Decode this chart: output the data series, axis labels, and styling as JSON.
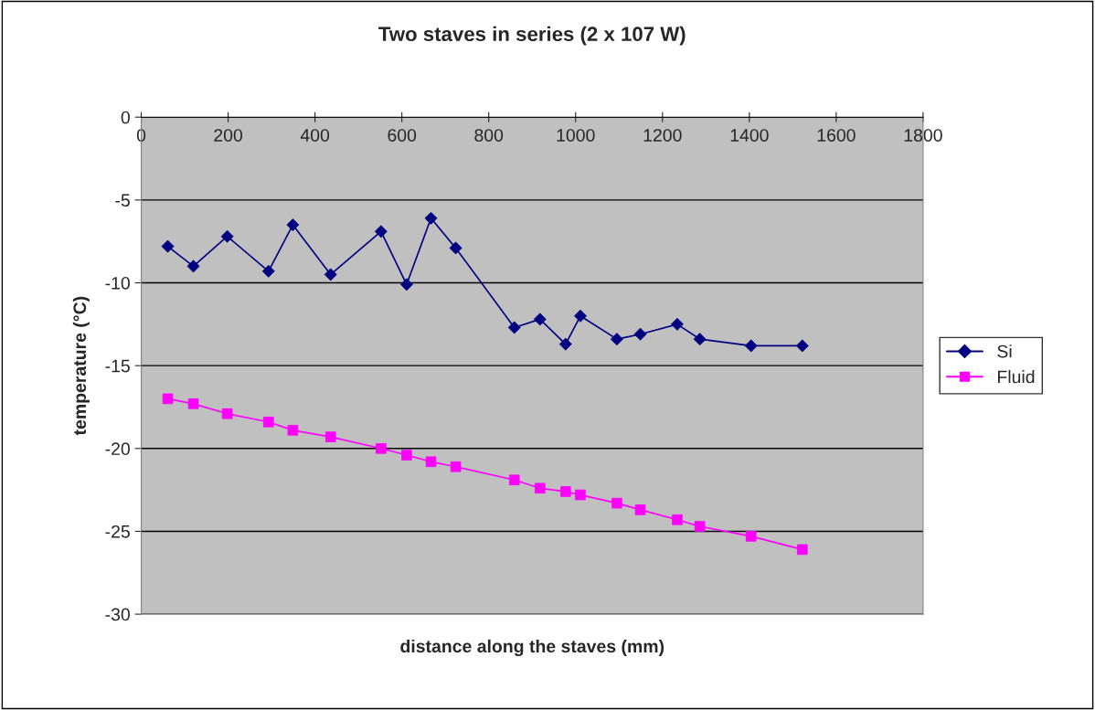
{
  "chart_data": {
    "type": "line",
    "title": "Two staves in series (2 x 107 W)",
    "xlabel": "distance along the staves (mm)",
    "ylabel": "temperature (°C)",
    "xlim": [
      0,
      1800
    ],
    "xticks": [
      0,
      200,
      400,
      600,
      800,
      1000,
      1200,
      1400,
      1600,
      1800
    ],
    "ylim": [
      -30,
      0
    ],
    "yticks": [
      -30,
      -25,
      -20,
      -15,
      -10,
      -5,
      0
    ],
    "grid": "y",
    "legend": "right",
    "x": [
      61,
      120,
      198,
      293,
      349,
      436,
      552,
      611,
      667,
      724,
      859,
      918,
      977,
      1011,
      1095,
      1149,
      1234,
      1286,
      1404,
      1522
    ],
    "series": [
      {
        "name": "Si",
        "color": "#000080",
        "marker": "diamond",
        "values": [
          -7.8,
          -9.0,
          -7.2,
          -9.3,
          -6.5,
          -9.5,
          -6.9,
          -10.1,
          -6.1,
          -7.9,
          -12.7,
          -12.2,
          -13.7,
          -12.0,
          -13.4,
          -13.1,
          -12.5,
          -13.4,
          -13.8,
          -13.8
        ]
      },
      {
        "name": "Fluid",
        "color": "#ff00ff",
        "marker": "square",
        "values": [
          -17.0,
          -17.3,
          -17.9,
          -18.4,
          -18.9,
          -19.3,
          -20.0,
          -20.4,
          -20.8,
          -21.1,
          -21.9,
          -22.4,
          -22.6,
          -22.8,
          -23.3,
          -23.7,
          -24.3,
          -24.7,
          -25.3,
          -26.1
        ]
      }
    ]
  }
}
